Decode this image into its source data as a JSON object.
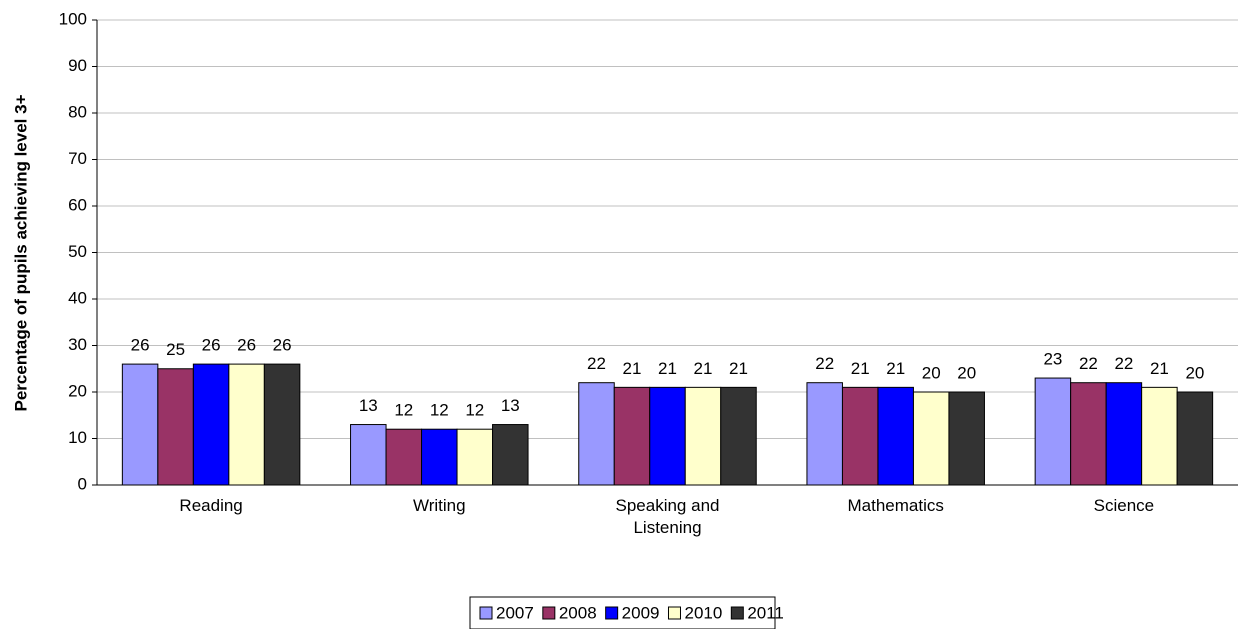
{
  "chart_data": {
    "type": "bar",
    "ylabel": "Percentage of pupils achieving level 3+",
    "categories": [
      "Reading",
      "Writing",
      "Speaking and Listening",
      "Mathematics",
      "Science"
    ],
    "series": [
      {
        "name": "2007",
        "color": "#9999ff",
        "values": [
          26,
          13,
          22,
          22,
          23
        ]
      },
      {
        "name": "2008",
        "color": "#993366",
        "values": [
          25,
          12,
          21,
          21,
          22
        ]
      },
      {
        "name": "2009",
        "color": "#0000ff",
        "values": [
          26,
          12,
          21,
          21,
          22
        ]
      },
      {
        "name": "2010",
        "color": "#ffffcc",
        "values": [
          26,
          12,
          21,
          20,
          21
        ]
      },
      {
        "name": "2011",
        "color": "#333333",
        "values": [
          26,
          13,
          21,
          20,
          20
        ]
      }
    ],
    "ylim": [
      0,
      100
    ],
    "yticks": [
      0,
      10,
      20,
      30,
      40,
      50,
      60,
      70,
      80,
      90,
      100
    ],
    "grid": true,
    "legend": "bottom"
  }
}
